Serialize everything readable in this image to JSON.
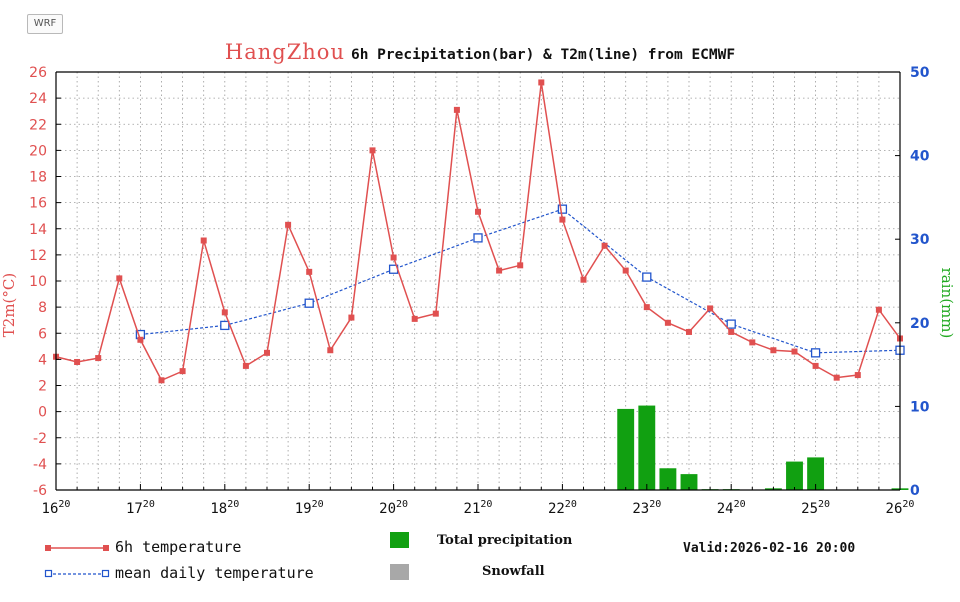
{
  "tag": "WRF",
  "title": {
    "city": "HangZhou",
    "rest": "6h Precipitation(bar) & T2m(line) from ECMWF"
  },
  "colors": {
    "temp": "#e05050",
    "mean": "#2255cc",
    "precip": "#11a011",
    "snow": "#a8a8a8",
    "rain_axis": "#22aa22",
    "temp_axis": "#e05050"
  },
  "chart_data": {
    "type": "bar+line",
    "title": "HangZhou 6h Precipitation(bar) & T2m(line) from ECMWF",
    "x_ticks": [
      {
        "day": "16",
        "hour": "20"
      },
      {
        "day": "17",
        "hour": "20"
      },
      {
        "day": "18",
        "hour": "20"
      },
      {
        "day": "19",
        "hour": "20"
      },
      {
        "day": "20",
        "hour": "20"
      },
      {
        "day": "21",
        "hour": "20"
      },
      {
        "day": "22",
        "hour": "20"
      },
      {
        "day": "23",
        "hour": "20"
      },
      {
        "day": "24",
        "hour": "20"
      },
      {
        "day": "25",
        "hour": "20"
      },
      {
        "day": "26",
        "hour": "20"
      }
    ],
    "xlim": [
      0,
      240
    ],
    "y_left": {
      "label": "T2m(°C)",
      "ylim": [
        -6,
        26
      ],
      "ticks": [
        -6,
        -4,
        -2,
        0,
        2,
        4,
        6,
        8,
        10,
        12,
        14,
        16,
        18,
        20,
        22,
        24,
        26
      ]
    },
    "y_right": {
      "label": "rain(mm)",
      "ylim": [
        0,
        50
      ],
      "ticks": [
        0,
        10,
        20,
        30,
        40,
        50
      ]
    },
    "grid": true,
    "series": [
      {
        "name": "6h temperature",
        "type": "line",
        "x": [
          0,
          6,
          12,
          18,
          24,
          30,
          36,
          42,
          48,
          54,
          60,
          66,
          72,
          78,
          84,
          90,
          96,
          102,
          108,
          114,
          120,
          126,
          132,
          138,
          144,
          150,
          156,
          162,
          168,
          174,
          180,
          186,
          192,
          198,
          204,
          210,
          216,
          222,
          228,
          234,
          240
        ],
        "values": [
          4.2,
          3.8,
          4.1,
          10.2,
          5.5,
          2.4,
          3.1,
          13.1,
          7.6,
          3.5,
          4.5,
          14.3,
          10.7,
          4.7,
          7.2,
          20.0,
          11.8,
          7.1,
          7.5,
          23.1,
          15.3,
          10.8,
          11.2,
          25.2,
          14.7,
          10.1,
          12.7,
          10.8,
          8.0,
          6.8,
          6.1,
          7.9,
          6.1,
          5.3,
          4.7,
          4.6,
          3.5,
          2.6,
          2.8,
          7.8,
          5.6
        ]
      },
      {
        "name": "mean daily temperature",
        "type": "line",
        "x": [
          24,
          48,
          72,
          96,
          120,
          144,
          168,
          192,
          216,
          240
        ],
        "values": [
          5.9,
          6.6,
          8.3,
          10.9,
          13.3,
          15.5,
          10.3,
          6.7,
          4.5,
          4.7
        ]
      },
      {
        "name": "Total precipitation",
        "type": "bar",
        "axis": "right",
        "x": [
          162,
          168,
          174,
          180,
          186,
          192,
          198,
          204,
          210,
          216,
          222,
          228,
          234,
          240
        ],
        "values": [
          9.7,
          10.1,
          2.6,
          1.9,
          0.1,
          0.1,
          0,
          0.2,
          3.4,
          3.9,
          0,
          0,
          0,
          0.2
        ]
      },
      {
        "name": "Snowfall",
        "type": "bar",
        "axis": "right",
        "x": [],
        "values": []
      }
    ]
  },
  "legend": {
    "temp": "6h temperature",
    "mean": "mean daily temperature",
    "precip": "Total precipitation",
    "snow": "Snowfall"
  },
  "valid": "Valid:2026-02-16 20:00"
}
